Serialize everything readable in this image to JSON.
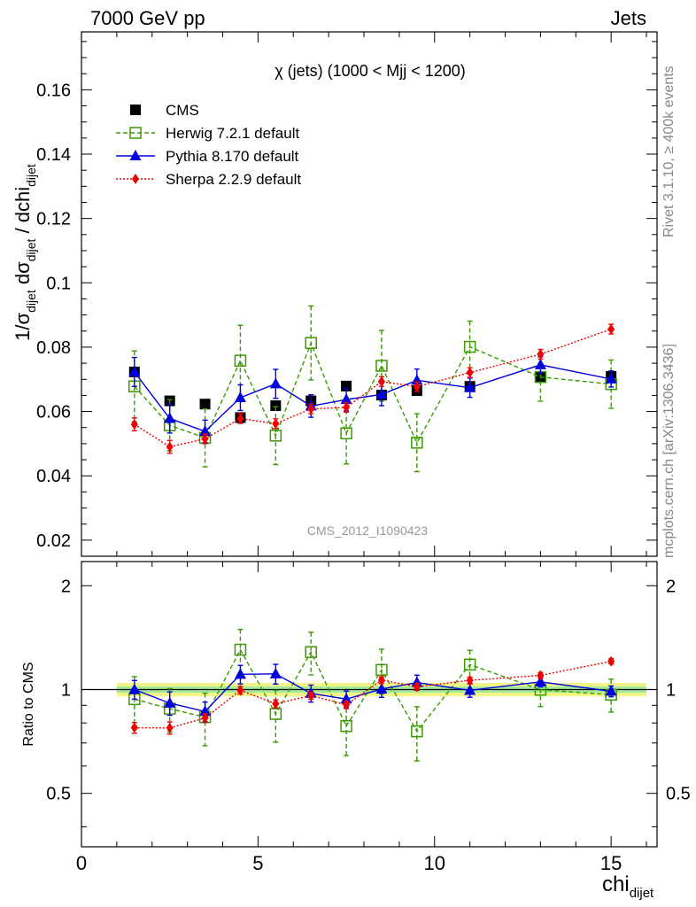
{
  "header": {
    "left": "7000 GeV pp",
    "right": "Jets"
  },
  "side_labels": {
    "rivet": "Rivet 3.1.10, ≥ 400k events",
    "mcplots": "mcplots.cern.ch [arXiv:1306.3436]"
  },
  "chart_data": {
    "type": "scatter",
    "title": "χ (jets) (1000 < Mjj < 1200)",
    "watermark": "CMS_2012_I1090423",
    "xlabel": "chi",
    "xlabel_sub": "dijet",
    "ylabel_main": "1/σ dσ / dchi",
    "ylabel_main_parts": [
      "1/σ",
      "dijet",
      " dσ",
      "dijet",
      " / dchi",
      "dijet"
    ],
    "ylabel_ratio": "Ratio to CMS",
    "xlim": [
      0,
      16.3
    ],
    "ylim": [
      0.015,
      0.178
    ],
    "ratio_ylim": [
      0.35,
      2.35
    ],
    "ratio_log_scale": true,
    "x_ticks": [
      0,
      5,
      10,
      15
    ],
    "y_ticks": [
      0.02,
      0.04,
      0.06,
      0.08,
      0.1,
      0.12,
      0.14,
      0.16
    ],
    "y_tick_labels": [
      "0.02",
      "0.04",
      "0.06",
      "0.08",
      "0.1",
      "0.12",
      "0.14",
      "0.16"
    ],
    "ratio_y_ticks": [
      0.5,
      1,
      2
    ],
    "ratio_y_tick_labels": [
      "0.5",
      "1",
      "2"
    ],
    "legend_position": "top-left",
    "x": [
      1.5,
      2.5,
      3.5,
      4.5,
      5.5,
      6.5,
      7.5,
      8.5,
      9.5,
      11,
      13,
      15
    ],
    "x_bins": [
      [
        1,
        2
      ],
      [
        2,
        3
      ],
      [
        3,
        4
      ],
      [
        4,
        5
      ],
      [
        5,
        6
      ],
      [
        6,
        7
      ],
      [
        7,
        8
      ],
      [
        8,
        9
      ],
      [
        9,
        10
      ],
      [
        10,
        12
      ],
      [
        12,
        14
      ],
      [
        14,
        16
      ]
    ],
    "data": {
      "name": "CMS",
      "color": "#000000",
      "values": [
        0.0723,
        0.0633,
        0.0623,
        0.0581,
        0.0618,
        0.0633,
        0.0679,
        0.0651,
        0.0665,
        0.0678,
        0.0708,
        0.0709
      ],
      "band_inner": 0.02,
      "band_outer": 0.045
    },
    "series": [
      {
        "name": "Herwig 7.2.1 default",
        "color": "#3a9a00",
        "marker": "open-square",
        "line": "dashed",
        "values": [
          0.0678,
          0.0557,
          0.0518,
          0.0758,
          0.0525,
          0.0813,
          0.0532,
          0.0742,
          0.0503,
          0.0801,
          0.0707,
          0.0685
        ],
        "errors": [
          0.011,
          0.008,
          0.009,
          0.011,
          0.009,
          0.0115,
          0.0095,
          0.011,
          0.009,
          0.008,
          0.0075,
          0.0075
        ]
      },
      {
        "name": "Pythia 8.170 default",
        "color": "#0000dd",
        "marker": "triangle",
        "line": "solid",
        "values": [
          0.0723,
          0.0578,
          0.0538,
          0.0643,
          0.0686,
          0.0617,
          0.0637,
          0.0653,
          0.0697,
          0.0674,
          0.0745,
          0.0701
        ],
        "errors": [
          0.0045,
          0.0045,
          0.0035,
          0.004,
          0.0045,
          0.0035,
          0.0035,
          0.0035,
          0.0035,
          0.003,
          0.0025,
          0.0025
        ]
      },
      {
        "name": "Sherpa 2.2.9 default",
        "color": "#ee0000",
        "marker": "diamond",
        "line": "dotted",
        "values": [
          0.056,
          0.049,
          0.0515,
          0.0578,
          0.0562,
          0.0608,
          0.0613,
          0.0693,
          0.0677,
          0.0721,
          0.0778,
          0.0856
        ],
        "errors": [
          0.002,
          0.002,
          0.0015,
          0.0015,
          0.0015,
          0.0015,
          0.0015,
          0.0015,
          0.0015,
          0.0015,
          0.0015,
          0.0015
        ]
      }
    ]
  }
}
